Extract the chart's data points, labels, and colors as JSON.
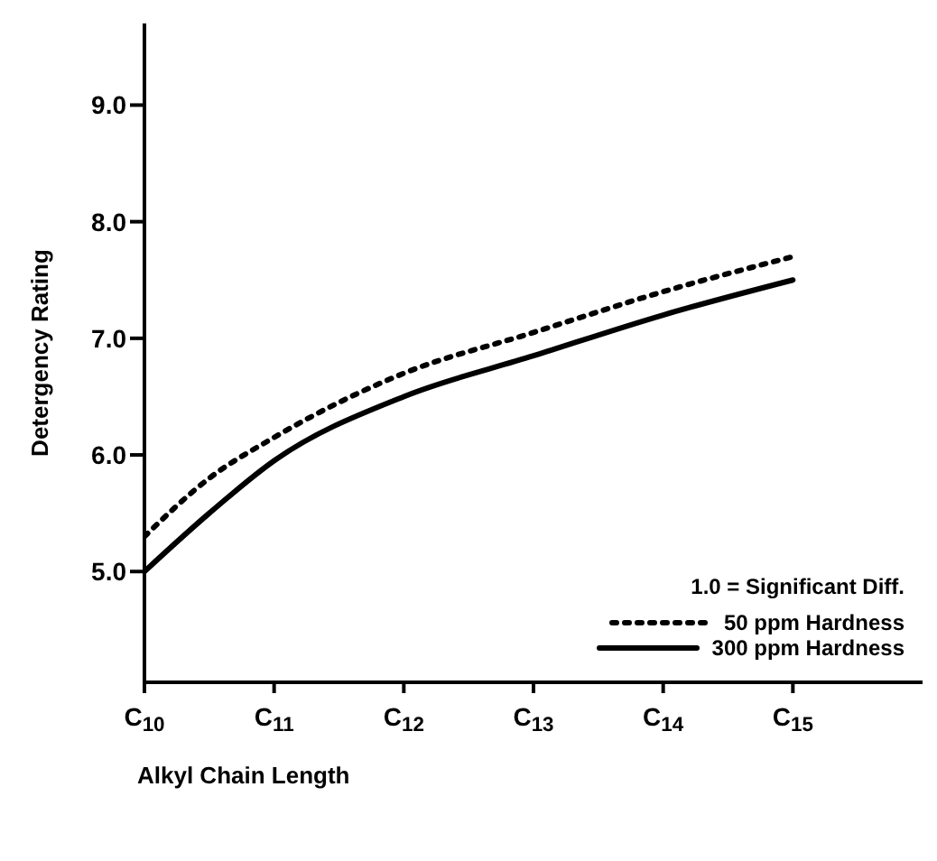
{
  "chart_data": {
    "type": "line",
    "xlabel": "Alkyl Chain Length",
    "ylabel": "Detergency Rating",
    "x": [
      10,
      10.5,
      11,
      12,
      13,
      14,
      15
    ],
    "series": [
      {
        "name": "50 ppm Hardness",
        "color": "#000000",
        "line_style": "dotted",
        "values": [
          5.3,
          5.8,
          6.15,
          6.7,
          7.05,
          7.4,
          7.7
        ]
      },
      {
        "name": "300 ppm Hardness",
        "color": "#000000",
        "line_style": "solid",
        "values": [
          5.0,
          5.5,
          5.95,
          6.5,
          6.85,
          7.2,
          7.5
        ]
      }
    ],
    "xlim": [
      10,
      16
    ],
    "xticks": [
      {
        "value": 10,
        "label": "C$_{10}$"
      },
      {
        "value": 11,
        "label": "C$_{11}$"
      },
      {
        "value": 12,
        "label": "C$_{12}$"
      },
      {
        "value": 13,
        "label": "C$_{13}$"
      },
      {
        "value": 14,
        "label": "C$_{14}$"
      },
      {
        "value": 15,
        "label": "C$_{15}$"
      }
    ],
    "ylim": [
      4.05,
      9.7
    ],
    "yticks": [
      {
        "value": 5,
        "label": "5.0"
      },
      {
        "value": 6,
        "label": "6.0"
      },
      {
        "value": 7,
        "label": "7.0"
      },
      {
        "value": 8,
        "label": "8.0"
      },
      {
        "value": 9,
        "label": "9.0"
      }
    ],
    "annotations": [
      "1.0 = Significant Diff."
    ],
    "legend": "bottom right",
    "grid": false,
    "marker": "none"
  }
}
